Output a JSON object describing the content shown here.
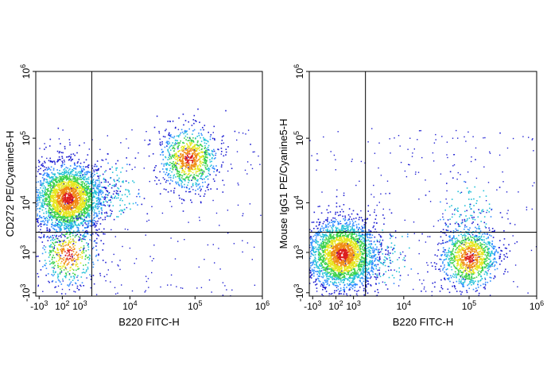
{
  "chart_data": [
    {
      "type": "scatter",
      "subtype": "flow-cytometry-density-plot",
      "title": "",
      "xlabel": "B220 FITC-H",
      "ylabel": "CD272 PE/Cyanine5-H",
      "x_scale": "biexponential",
      "y_scale": "biexponential",
      "x_ticks": [
        {
          "value": -1000,
          "label": "-10",
          "exp": "3"
        },
        {
          "value": 100,
          "label": "10",
          "exp": "2"
        },
        {
          "value": 1000,
          "label": "10",
          "exp": "3"
        },
        {
          "value": 10000,
          "label": "10",
          "exp": "4"
        },
        {
          "value": 100000,
          "label": "10",
          "exp": "5"
        },
        {
          "value": 1000000,
          "label": "10",
          "exp": "6"
        }
      ],
      "y_ticks": [
        {
          "value": -1000,
          "label": "-10",
          "exp": "3"
        },
        {
          "value": 1000,
          "label": "10",
          "exp": "3"
        },
        {
          "value": 10000,
          "label": "10",
          "exp": "4"
        },
        {
          "value": 100000,
          "label": "10",
          "exp": "5"
        },
        {
          "value": 1000000,
          "label": "10",
          "exp": "6"
        }
      ],
      "gate": {
        "x": 2000,
        "y": 3000
      },
      "populations": [
        {
          "x": 320,
          "y": 12000,
          "count": 2600
        },
        {
          "x": 80000,
          "y": 50000,
          "count": 900
        },
        {
          "x": 350,
          "y": 900,
          "count": 450
        },
        {
          "x": 5000,
          "y": 15000,
          "count": 120
        }
      ],
      "color_scale": [
        "#1e1ed2",
        "#2f8cff",
        "#26c2d9",
        "#3cd24c",
        "#e6e61e",
        "#f08c14",
        "#dc1e1e"
      ]
    },
    {
      "type": "scatter",
      "subtype": "flow-cytometry-density-plot",
      "title": "",
      "xlabel": "B220 FITC-H",
      "ylabel": "Mouse IgG1 PE/Cyanine5-H",
      "x_scale": "biexponential",
      "y_scale": "biexponential",
      "x_ticks": [
        {
          "value": -1000,
          "label": "-10",
          "exp": "3"
        },
        {
          "value": 100,
          "label": "10",
          "exp": "2"
        },
        {
          "value": 1000,
          "label": "10",
          "exp": "3"
        },
        {
          "value": 10000,
          "label": "10",
          "exp": "4"
        },
        {
          "value": 100000,
          "label": "10",
          "exp": "5"
        },
        {
          "value": 1000000,
          "label": "10",
          "exp": "6"
        }
      ],
      "y_ticks": [
        {
          "value": -1000,
          "label": "-10",
          "exp": "3"
        },
        {
          "value": 1000,
          "label": "10",
          "exp": "3"
        },
        {
          "value": 10000,
          "label": "10",
          "exp": "4"
        },
        {
          "value": 100000,
          "label": "10",
          "exp": "5"
        },
        {
          "value": 1000000,
          "label": "10",
          "exp": "6"
        }
      ],
      "gate": {
        "x": 2000,
        "y": 3000
      },
      "populations": [
        {
          "x": 350,
          "y": 900,
          "count": 2600
        },
        {
          "x": 100000,
          "y": 700,
          "count": 1100
        },
        {
          "x": 90000,
          "y": 8000,
          "count": 90
        },
        {
          "x": 5000,
          "y": 800,
          "count": 100
        }
      ],
      "color_scale": [
        "#1e1ed2",
        "#2f8cff",
        "#26c2d9",
        "#3cd24c",
        "#e6e61e",
        "#f08c14",
        "#dc1e1e"
      ]
    }
  ]
}
